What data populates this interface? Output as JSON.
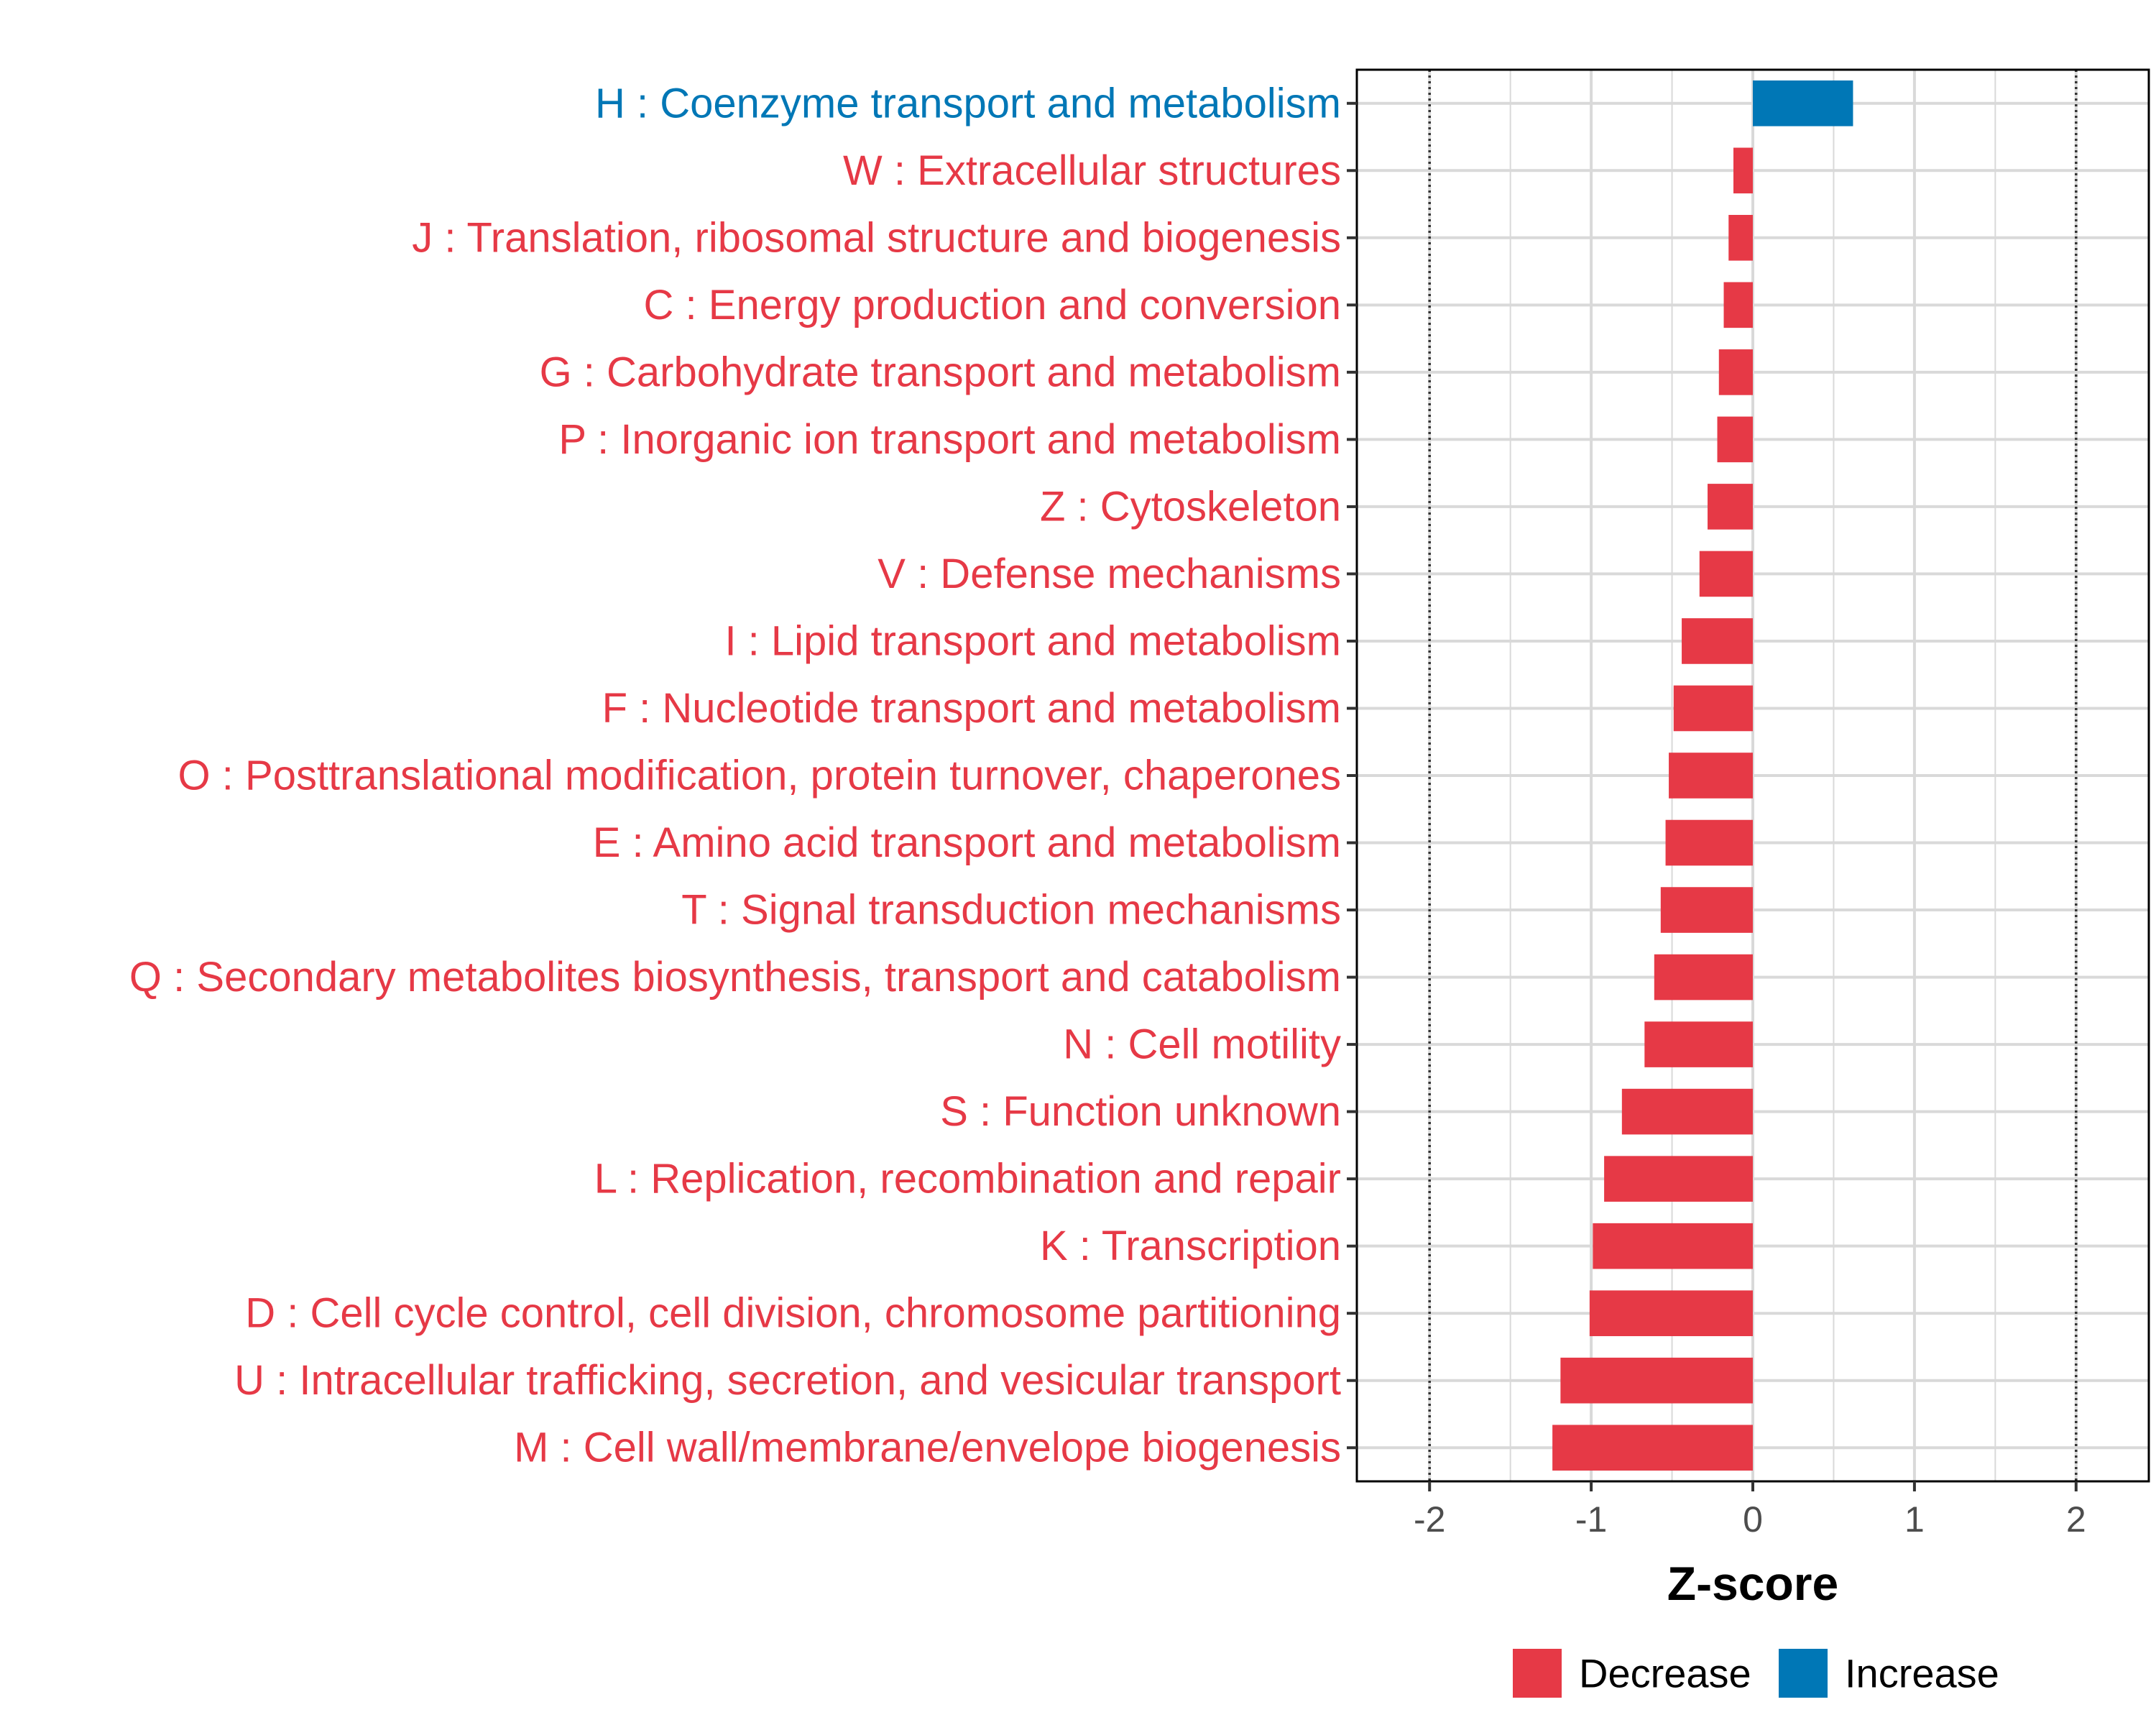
{
  "chart_data": {
    "type": "bar",
    "orientation": "horizontal",
    "xlabel": "Z-score",
    "ylabel": "",
    "xlim": [
      -2.45,
      2.45
    ],
    "xticks": [
      -2,
      -1,
      0,
      1,
      2
    ],
    "xtick_labels": [
      "-2",
      "-1",
      "0",
      "1",
      "2"
    ],
    "reference_lines": [
      -2,
      2
    ],
    "grid": true,
    "legend_position": "bottom",
    "legend": [
      {
        "label": "Decrease",
        "color": "#E63946"
      },
      {
        "label": "Increase",
        "color": "#0077B6"
      }
    ],
    "categories": [
      "H : Coenzyme transport and metabolism",
      "W : Extracellular structures",
      "J : Translation, ribosomal structure and biogenesis",
      "C : Energy production and conversion",
      "G : Carbohydrate transport and metabolism",
      "P : Inorganic ion transport and metabolism",
      "Z : Cytoskeleton",
      "V : Defense mechanisms",
      "I : Lipid transport and metabolism",
      "F : Nucleotide transport and metabolism",
      "O : Posttranslational modification, protein turnover, chaperones",
      "E : Amino acid transport and metabolism",
      "T : Signal transduction mechanisms",
      "Q : Secondary metabolites biosynthesis, transport and catabolism",
      "N : Cell motility",
      "S : Function unknown",
      "L : Replication, recombination and repair",
      "K : Transcription",
      "D : Cell cycle control, cell division, chromosome partitioning",
      "U : Intracellular trafficking, secretion, and vesicular transport",
      "M : Cell wall/membrane/envelope biogenesis"
    ],
    "values": [
      0.62,
      -0.12,
      -0.15,
      -0.18,
      -0.21,
      -0.22,
      -0.28,
      -0.33,
      -0.44,
      -0.49,
      -0.52,
      -0.54,
      -0.57,
      -0.61,
      -0.67,
      -0.81,
      -0.92,
      -0.99,
      -1.01,
      -1.19,
      -1.24
    ],
    "direction": [
      "Increase",
      "Decrease",
      "Decrease",
      "Decrease",
      "Decrease",
      "Decrease",
      "Decrease",
      "Decrease",
      "Decrease",
      "Decrease",
      "Decrease",
      "Decrease",
      "Decrease",
      "Decrease",
      "Decrease",
      "Decrease",
      "Decrease",
      "Decrease",
      "Decrease",
      "Decrease",
      "Decrease"
    ]
  }
}
